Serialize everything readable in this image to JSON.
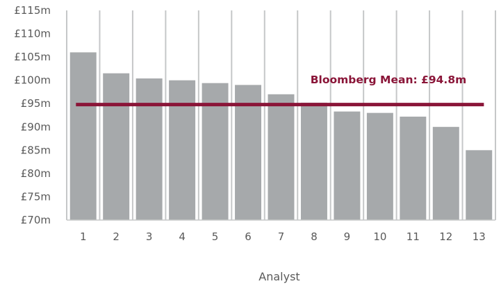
{
  "chart_data": {
    "type": "bar",
    "categories": [
      "1",
      "2",
      "3",
      "4",
      "5",
      "6",
      "7",
      "8",
      "9",
      "10",
      "11",
      "12",
      "13"
    ],
    "values": [
      106,
      101.5,
      100.4,
      100,
      99.4,
      99,
      97,
      95.2,
      93.3,
      93,
      92.2,
      90,
      85
    ],
    "ylim": [
      70,
      115
    ],
    "yticks": [
      70,
      75,
      80,
      85,
      90,
      95,
      100,
      105,
      110,
      115
    ],
    "ytick_labels": [
      "£70m",
      "£75m",
      "£80m",
      "£85m",
      "£90m",
      "£95m",
      "£100m",
      "£105m",
      "£110m",
      "£115m"
    ],
    "xlabel": "Analyst",
    "ylabel": "",
    "mean_line": {
      "value": 94.8,
      "label": "Bloomberg Mean: £94.8m"
    },
    "grid": {
      "vertical": true,
      "horizontal": false
    },
    "colors": {
      "bar": "#a6a9ab",
      "grid": "#c5c7c8",
      "mean": "#8a1538",
      "text": "#595959"
    }
  }
}
